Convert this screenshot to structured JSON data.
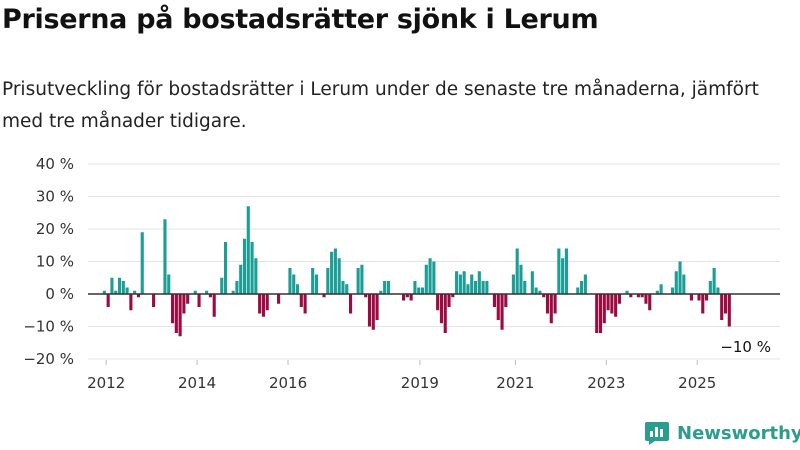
{
  "title": "Priserna på bostadsrätter sjönk i Lerum",
  "subtitle": "Prisutveckling för bostadsrätter i Lerum under de senaste tre månaderna, jämfört med tre månader tidigare.",
  "brand": {
    "name": "Newsworthy",
    "icon": "newsworthy-logo-icon"
  },
  "colors": {
    "positive": "#1a9e96",
    "negative": "#9b0a41",
    "grid": "#e3e3e3",
    "axis": "#333333",
    "text": "#333333"
  },
  "chart_data": {
    "type": "bar",
    "title": "Priserna på bostadsrätter sjönk i Lerum",
    "xlabel": "",
    "ylabel": "",
    "unit": "%",
    "ylim": [
      -20,
      40
    ],
    "yticks": [
      -20,
      -10,
      0,
      10,
      20,
      30,
      40
    ],
    "ytick_labels": [
      "−20 %",
      "−10 %",
      "0 %",
      "10 %",
      "20 %",
      "30 %",
      "40 %"
    ],
    "xticks": [
      2012,
      2014,
      2016,
      2019,
      2021,
      2023,
      2025
    ],
    "xtick_positions": [
      2012.0,
      2014.0,
      2016.0,
      2018.9,
      2021.0,
      2023.0,
      2025.0
    ],
    "x_start": 2011.96,
    "x_step": 0.0833,
    "grid": true,
    "legend": "none",
    "last_value_label": "−10 %",
    "values": [
      1,
      -4,
      5,
      1,
      5,
      4,
      2,
      -5,
      1,
      -1,
      19,
      0,
      0,
      -4,
      0,
      0,
      23,
      6,
      -9,
      -12,
      -13,
      -6,
      -3,
      0,
      1,
      -4,
      0,
      1,
      -1,
      -7,
      0,
      5,
      16,
      0,
      1,
      4,
      9,
      17,
      27,
      16,
      11,
      -6,
      -7,
      -5,
      0,
      0,
      -3,
      0,
      0,
      8,
      6,
      3,
      -4,
      -6,
      0,
      8,
      6,
      0,
      -1,
      8,
      13,
      14,
      11,
      4,
      3,
      -6,
      0,
      8,
      9,
      -1,
      -10,
      -11,
      -8,
      1,
      4,
      4,
      0,
      0,
      0,
      -2,
      -1,
      -2,
      4,
      2,
      2,
      9,
      11,
      10,
      -5,
      -9,
      -12,
      -4,
      -1,
      7,
      6,
      7,
      3,
      6,
      4,
      7,
      4,
      4,
      0,
      -4,
      -8,
      -11,
      -4,
      0,
      6,
      14,
      9,
      4,
      0,
      7,
      2,
      1,
      -1,
      -6,
      -9,
      -6,
      14,
      11,
      14,
      0,
      0,
      2,
      4,
      6,
      0,
      0,
      -12,
      -12,
      -9,
      -5,
      -6,
      -7,
      -3,
      0,
      1,
      -1,
      0,
      -1,
      -1,
      -3,
      -5,
      0,
      1,
      3,
      0,
      0,
      2,
      7,
      10,
      6,
      0,
      -2,
      0,
      -2,
      -6,
      -2,
      4,
      8,
      2,
      -8,
      -6,
      -10
    ]
  }
}
